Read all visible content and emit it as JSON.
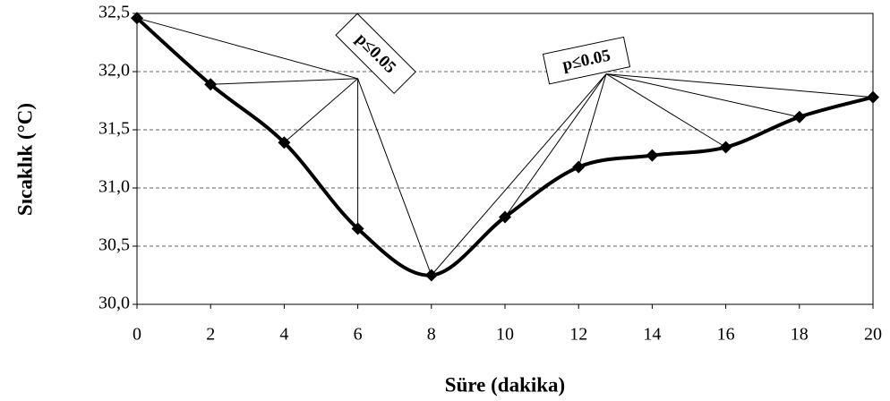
{
  "chart_data": {
    "type": "line",
    "x_label": "Süre (dakika)",
    "y_label": "Sıcaklık (°C)",
    "x": [
      0,
      2,
      4,
      6,
      8,
      10,
      12,
      14,
      16,
      18,
      20
    ],
    "series": [
      {
        "name": "Sıcaklık",
        "color": "#000000",
        "values": [
          32.46,
          31.89,
          31.39,
          30.65,
          30.25,
          30.75,
          31.18,
          31.28,
          31.35,
          31.61,
          31.78
        ]
      }
    ],
    "xlim": [
      0,
      20
    ],
    "xticks": [
      0,
      2,
      4,
      6,
      8,
      10,
      12,
      14,
      16,
      18,
      20
    ],
    "ylim": [
      30,
      32.5
    ],
    "yticks": [
      {
        "value": 30,
        "label": "30,0"
      },
      {
        "value": 30.5,
        "label": "30,5"
      },
      {
        "value": 31,
        "label": "31,0"
      },
      {
        "value": 31.5,
        "label": "31,5"
      },
      {
        "value": 32,
        "label": "32,0"
      },
      {
        "value": 32.5,
        "label": "32,5"
      }
    ],
    "grid": true,
    "smooth": true,
    "annotations": [
      {
        "text": "p≤0.05",
        "x": 6,
        "y": 31.94,
        "points": [
          0,
          1,
          2,
          3,
          4
        ]
      },
      {
        "text": "p≤0.05",
        "x": 12.75,
        "y": 31.98,
        "points": [
          4,
          5,
          6,
          8,
          9,
          10
        ]
      }
    ]
  }
}
